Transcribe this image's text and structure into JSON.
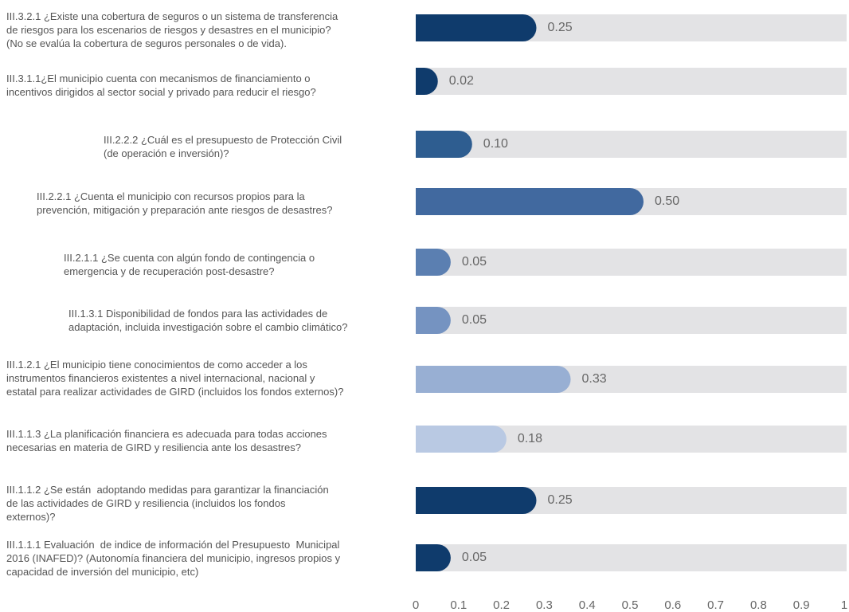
{
  "chart_data": {
    "type": "bar",
    "orientation": "horizontal",
    "categories": [
      "III.3.2.1 ¿Existe una cobertura de seguros o un sistema de transferencia\nde riesgos para los escenarios de riesgos y desastres en el municipio?\n(No se evalúa la cobertura de seguros personales o de vida).",
      "III.3.1.1¿El municipio cuenta con mecanismos de financiamiento o\nincentivos dirigidos al sector social y privado para reducir el riesgo?",
      "III.2.2.2 ¿Cuál es el presupuesto de Protección Civil\n(de operación e inversión)?",
      "III.2.2.1 ¿Cuenta el municipio con recursos propios para la\nprevención, mitigación y preparación ante riesgos de desastres?",
      "III.2.1.1 ¿Se cuenta con algún fondo de contingencia o\nemergencia y de recuperación post-desastre?",
      "III.1.3.1 Disponibilidad de fondos para las actividades de\nadaptación, incluida investigación sobre el cambio climático?",
      "III.1.2.1 ¿El municipio tiene conocimientos de como acceder a los\ninstrumentos financieros existentes a nivel internacional, nacional y\nestatal para realizar actividades de GIRD (incluidos los fondos externos)?",
      "III.1.1.3 ¿La planificación financiera es adecuada para todas acciones\nnecesarias en materia de GIRD y resiliencia ante los desastres?",
      "III.1.1.2 ¿Se están  adoptando medidas para garantizar la financiación\nde las actividades de GIRD y resiliencia (incluidos los fondos\nexternos)?",
      "III.1.1.1 Evaluación  de indice de información del Presupuesto  Municipal\n2016 (INAFED)? (Autonomía financiera del municipio, ingresos propios y\ncapacidad de inversión del municipio, etc)"
    ],
    "values": [
      0.25,
      0.02,
      0.1,
      0.5,
      0.05,
      0.05,
      0.33,
      0.18,
      0.25,
      0.05
    ],
    "value_labels": [
      "0.25",
      "0.02",
      "0.10",
      "0.50",
      "0.05",
      "0.05",
      "0.33",
      "0.18",
      "0.25",
      "0.05"
    ],
    "colors": [
      "#0f3b6c",
      "#0f3b6c",
      "#2e5d90",
      "#41699f",
      "#5b7fb1",
      "#7593c1",
      "#98afd3",
      "#b9c9e3",
      "#0f3b6c",
      "#0f3b6c"
    ],
    "track_color": "#e3e3e5",
    "xlim": [
      0,
      1
    ],
    "xticks": [
      0,
      0.1,
      0.2,
      0.3,
      0.4,
      0.5,
      0.6,
      0.7,
      0.8,
      0.9,
      1
    ]
  }
}
